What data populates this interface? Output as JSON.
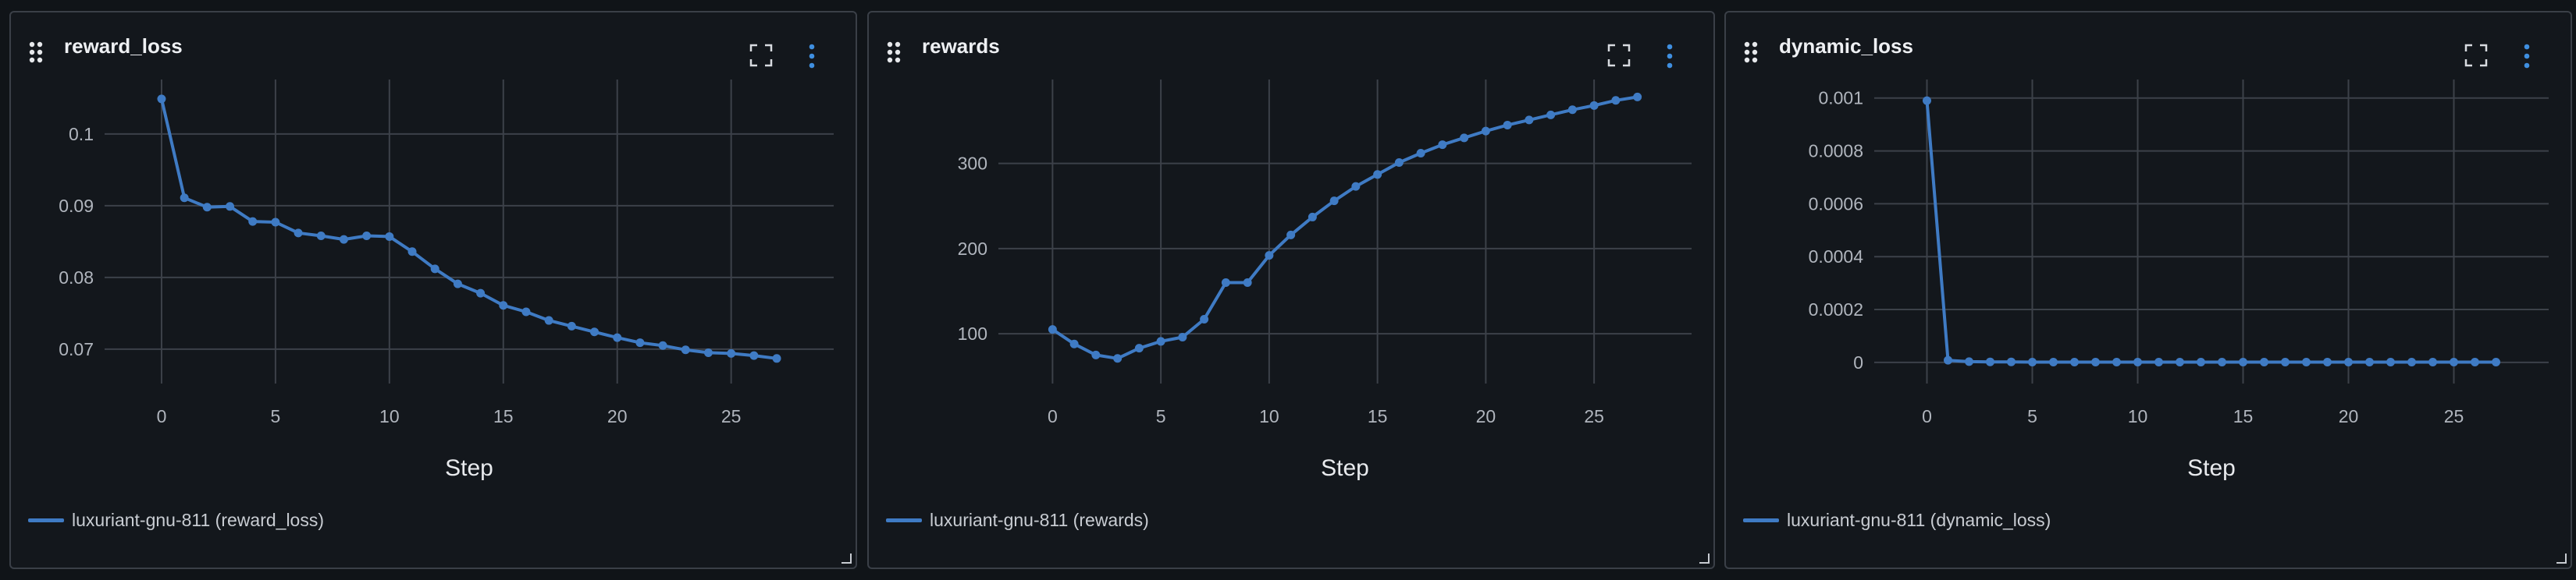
{
  "panels": [
    {
      "title": "reward_loss",
      "legend": "luxuriant-gnu-811 (reward_loss)"
    },
    {
      "title": "rewards",
      "legend": "luxuriant-gnu-811 (rewards)"
    },
    {
      "title": "dynamic_loss",
      "legend": "luxuriant-gnu-811 (dynamic_loss)"
    }
  ],
  "colors": {
    "line": "#3f7bc4",
    "grid": "#3c4149",
    "axis_text": "#b0b5bd",
    "xlabel": "#e8eaed"
  },
  "icons": [
    "drag-handle-icon",
    "fullscreen-icon",
    "more-options-icon",
    "resize-handle-icon"
  ],
  "chart_data": [
    {
      "type": "line",
      "title": "reward_loss",
      "xlabel": "Step",
      "ylabel": "",
      "xlim": [
        -2.5,
        29.5
      ],
      "ylim": [
        0.0652,
        0.1076
      ],
      "x_ticks": [
        0,
        5,
        10,
        15,
        20,
        25
      ],
      "y_ticks": [
        0.07,
        0.08,
        0.09,
        0.1
      ],
      "y_tick_labels": [
        "0.07",
        "0.08",
        "0.09",
        "0.1"
      ],
      "legend_position": "bottom-left",
      "grid": true,
      "series": [
        {
          "name": "luxuriant-gnu-811 (reward_loss)",
          "x": [
            0,
            1,
            2,
            3,
            4,
            5,
            6,
            7,
            8,
            9,
            10,
            11,
            12,
            13,
            14,
            15,
            16,
            17,
            18,
            19,
            20,
            21,
            22,
            23,
            24,
            25,
            26,
            27
          ],
          "values": [
            0.1049,
            0.0911,
            0.0898,
            0.0899,
            0.0878,
            0.0877,
            0.0862,
            0.0858,
            0.0853,
            0.0858,
            0.0857,
            0.0836,
            0.0812,
            0.0791,
            0.0778,
            0.0761,
            0.0752,
            0.074,
            0.0732,
            0.0724,
            0.0716,
            0.0709,
            0.0705,
            0.0699,
            0.0695,
            0.0694,
            0.0691,
            0.0687
          ]
        }
      ]
    },
    {
      "type": "line",
      "title": "rewards",
      "xlabel": "Step",
      "ylabel": "",
      "xlim": [
        -2.5,
        29.5
      ],
      "ylim": [
        41.5,
        398.5
      ],
      "x_ticks": [
        0,
        5,
        10,
        15,
        20,
        25
      ],
      "y_ticks": [
        100,
        200,
        300
      ],
      "y_tick_labels": [
        "100",
        "200",
        "300"
      ],
      "legend_position": "bottom-left",
      "grid": true,
      "series": [
        {
          "name": "luxuriant-gnu-811 (rewards)",
          "x": [
            0,
            1,
            2,
            3,
            4,
            5,
            6,
            7,
            8,
            9,
            10,
            11,
            12,
            13,
            14,
            15,
            16,
            17,
            18,
            19,
            20,
            21,
            22,
            23,
            24,
            25,
            26,
            27
          ],
          "values": [
            105,
            88,
            75,
            71,
            83,
            91,
            96,
            117,
            160,
            160,
            192,
            216,
            237,
            256,
            273,
            287,
            301,
            312,
            322,
            330,
            338,
            345,
            351,
            357,
            363,
            368,
            374,
            378
          ]
        }
      ]
    },
    {
      "type": "line",
      "title": "dynamic_loss",
      "xlabel": "Step",
      "ylabel": "",
      "xlim": [
        -2.5,
        29.5
      ],
      "ylim": [
        -8e-05,
        0.00107
      ],
      "x_ticks": [
        0,
        5,
        10,
        15,
        20,
        25
      ],
      "y_ticks": [
        0,
        0.0002,
        0.0004,
        0.0006,
        0.0008,
        0.001
      ],
      "y_tick_labels": [
        "0",
        "0.0002",
        "0.0004",
        "0.0006",
        "0.0008",
        "0.001"
      ],
      "legend_position": "bottom-left",
      "grid": true,
      "series": [
        {
          "name": "luxuriant-gnu-811 (dynamic_loss)",
          "x": [
            0,
            1,
            2,
            3,
            4,
            5,
            6,
            7,
            8,
            9,
            10,
            11,
            12,
            13,
            14,
            15,
            16,
            17,
            18,
            19,
            20,
            21,
            22,
            23,
            24,
            25,
            26,
            27
          ],
          "values": [
            0.00099,
            8e-06,
            3e-06,
            2e-06,
            2e-06,
            1e-06,
            1e-06,
            1e-06,
            1e-06,
            1e-06,
            1e-06,
            1e-06,
            1e-06,
            1e-06,
            1e-06,
            1e-06,
            1e-06,
            1e-06,
            1e-06,
            1e-06,
            1e-06,
            1e-06,
            1e-06,
            1e-06,
            1e-06,
            1e-06,
            1e-06,
            1e-06
          ]
        }
      ]
    }
  ]
}
